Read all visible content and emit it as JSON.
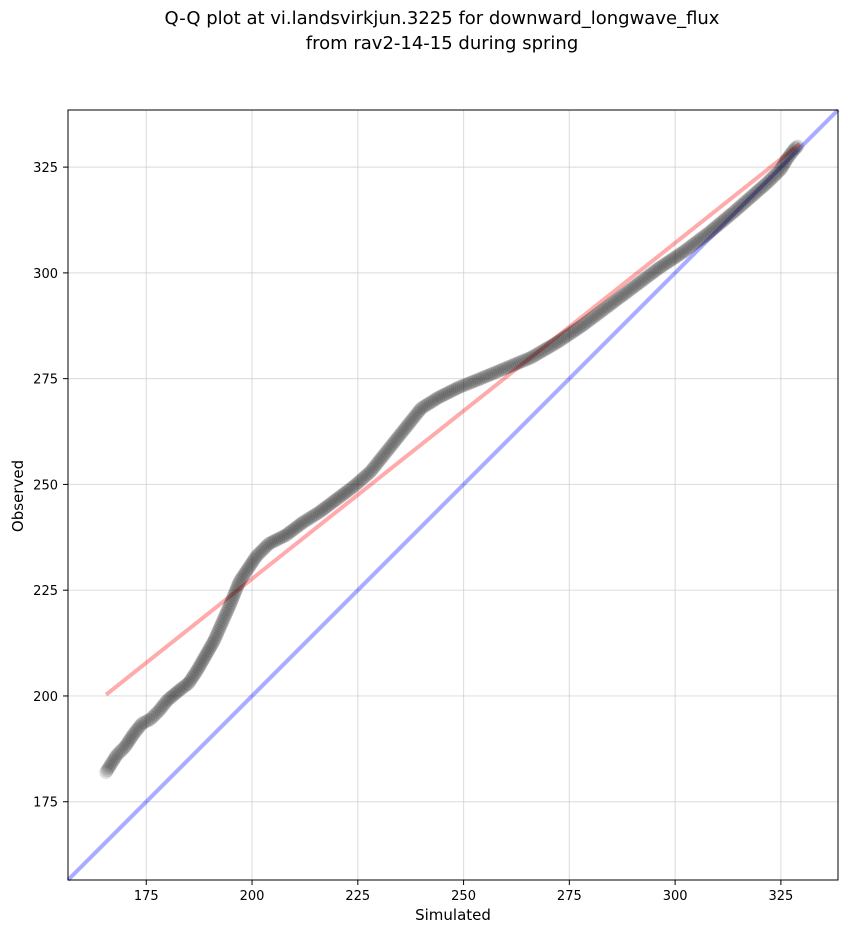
{
  "chart_data": {
    "type": "scatter",
    "title_line1": "Q-Q plot at vi.landsvirkjun.3225 for downward_longwave_flux",
    "title_line2": "from rav2-14-15 during spring",
    "xlabel": "Simulated",
    "ylabel": "Observed",
    "xlim": [
      156.5,
      338.5
    ],
    "ylim": [
      156.5,
      338.5
    ],
    "xticks": [
      175,
      200,
      225,
      250,
      275,
      300,
      325
    ],
    "yticks": [
      175,
      200,
      225,
      250,
      275,
      300,
      325
    ],
    "grid": true,
    "reference_line": {
      "name": "1:1",
      "color": "#0000ff",
      "from": [
        156.5,
        156.5
      ],
      "to": [
        338.5,
        338.5
      ]
    },
    "fit_line": {
      "color": "#ff0000",
      "from": [
        165.5,
        200.3
      ],
      "to": [
        329.5,
        330.5
      ]
    },
    "marker_color": "#000000",
    "anchors": [
      [
        165.5,
        182.0
      ],
      [
        168.0,
        186.0
      ],
      [
        170.0,
        188.0
      ],
      [
        172.0,
        191.0
      ],
      [
        174.0,
        193.5
      ],
      [
        176.0,
        194.5
      ],
      [
        178.0,
        196.5
      ],
      [
        180.0,
        199.0
      ],
      [
        183.0,
        201.5
      ],
      [
        185.0,
        203.0
      ],
      [
        187.0,
        206.0
      ],
      [
        189.0,
        209.5
      ],
      [
        191.0,
        213.0
      ],
      [
        193.0,
        217.5
      ],
      [
        195.0,
        222.0
      ],
      [
        197.0,
        227.0
      ],
      [
        199.0,
        230.0
      ],
      [
        201.0,
        233.0
      ],
      [
        204.0,
        236.0
      ],
      [
        208.0,
        238.0
      ],
      [
        212.0,
        241.0
      ],
      [
        216.0,
        243.5
      ],
      [
        220.0,
        246.5
      ],
      [
        224.0,
        249.5
      ],
      [
        228.0,
        253.0
      ],
      [
        232.0,
        258.0
      ],
      [
        236.0,
        263.0
      ],
      [
        240.0,
        268.0
      ],
      [
        244.0,
        270.5
      ],
      [
        249.0,
        273.0
      ],
      [
        254.0,
        275.0
      ],
      [
        260.0,
        277.5
      ],
      [
        266.0,
        280.0
      ],
      [
        272.0,
        283.5
      ],
      [
        278.0,
        287.5
      ],
      [
        284.0,
        292.0
      ],
      [
        290.0,
        296.5
      ],
      [
        296.0,
        301.0
      ],
      [
        302.0,
        305.0
      ],
      [
        308.0,
        309.5
      ],
      [
        314.0,
        314.5
      ],
      [
        318.0,
        318.0
      ],
      [
        322.0,
        321.5
      ],
      [
        325.0,
        324.5
      ],
      [
        326.5,
        327.0
      ],
      [
        328.0,
        329.0
      ],
      [
        329.0,
        330.0
      ]
    ]
  }
}
